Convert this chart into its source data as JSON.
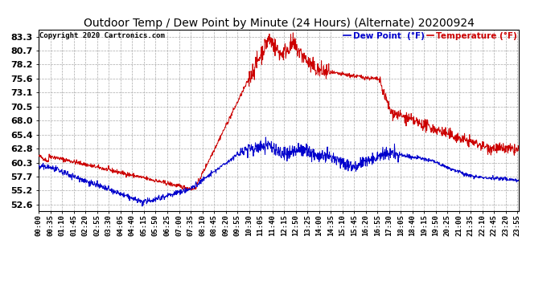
{
  "title": "Outdoor Temp / Dew Point by Minute (24 Hours) (Alternate) 20200924",
  "copyright": "Copyright 2020 Cartronics.com",
  "legend_dew": "Dew Point  (°F)",
  "legend_temp": "Temperature (°F)",
  "temp_color": "#cc0000",
  "dew_color": "#0000cc",
  "background_color": "#ffffff",
  "grid_color": "#aaaaaa",
  "yticks": [
    52.6,
    55.2,
    57.7,
    60.3,
    62.8,
    65.4,
    68.0,
    70.5,
    73.1,
    75.6,
    78.2,
    80.7,
    83.3
  ],
  "ylim": [
    51.5,
    84.5
  ],
  "xlabel_fontsize": 6.5,
  "ylabel_fontsize": 8,
  "title_fontsize": 10
}
